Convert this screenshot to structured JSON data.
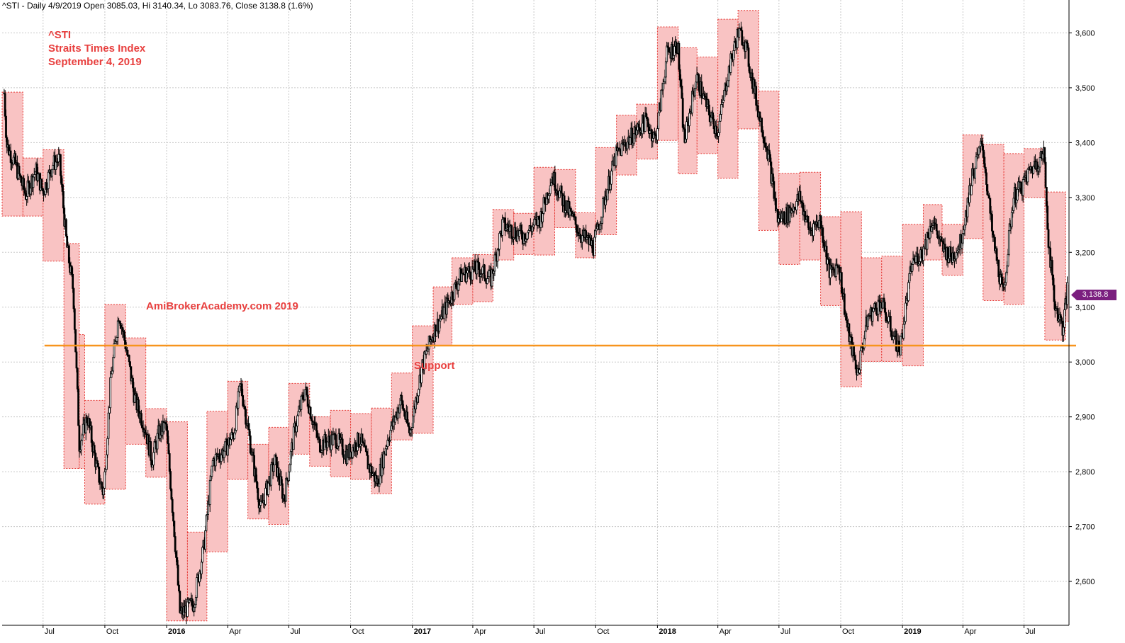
{
  "header": {
    "text": "^STI - Daily 4/9/2019 Open 3085.03, Hi 3140.34, Lo 3083.76, Close 3138.8 (1.6%)"
  },
  "annotations": {
    "symbol": "^STI",
    "name": "Straits Times Index",
    "date": "September 4, 2019",
    "watermark": "AmiBrokerAcademy.com   2019",
    "support_label": "Support"
  },
  "last_price_badge": "3,138.8",
  "colors": {
    "box_fill": "#f9c3c3",
    "box_border": "#e53935",
    "support_line": "#f7941d",
    "candle": "#000000",
    "grid": "#c8c8c8",
    "badge": "#7b1f7f",
    "annotation_text": "#e8403f"
  },
  "chart_data": {
    "type": "candlestick",
    "title": "^STI Straits Times Index",
    "subtitle": "September 4, 2019",
    "xlabel": "",
    "ylabel": "",
    "ylim": [
      2520,
      3660
    ],
    "x_range": [
      "2015-05-01",
      "2019-09-06"
    ],
    "yticks": [
      2600,
      2700,
      2800,
      2900,
      3000,
      3100,
      3200,
      3300,
      3400,
      3500,
      3600
    ],
    "ytick_labels": [
      "2,600",
      "2,700",
      "2,800",
      "2,900",
      "3,000",
      "3,100",
      "3,200",
      "3,300",
      "3,400",
      "3,500",
      "3,600"
    ],
    "xticks": [
      {
        "label": "Jul",
        "date": "2015-07-01",
        "year": false
      },
      {
        "label": "Oct",
        "date": "2015-10-01",
        "year": false
      },
      {
        "label": "2016",
        "date": "2016-01-01",
        "year": true
      },
      {
        "label": "Apr",
        "date": "2016-04-01",
        "year": false
      },
      {
        "label": "Jul",
        "date": "2016-07-01",
        "year": false
      },
      {
        "label": "Oct",
        "date": "2016-10-01",
        "year": false
      },
      {
        "label": "2017",
        "date": "2017-01-01",
        "year": true
      },
      {
        "label": "Apr",
        "date": "2017-04-01",
        "year": false
      },
      {
        "label": "Jul",
        "date": "2017-07-01",
        "year": false
      },
      {
        "label": "Oct",
        "date": "2017-10-01",
        "year": false
      },
      {
        "label": "2018",
        "date": "2018-01-01",
        "year": true
      },
      {
        "label": "Apr",
        "date": "2018-04-01",
        "year": false
      },
      {
        "label": "Jul",
        "date": "2018-07-01",
        "year": false
      },
      {
        "label": "Oct",
        "date": "2018-10-01",
        "year": false
      },
      {
        "label": "2019",
        "date": "2019-01-01",
        "year": true
      },
      {
        "label": "Apr",
        "date": "2019-04-01",
        "year": false
      },
      {
        "label": "Jul",
        "date": "2019-07-01",
        "year": false
      }
    ],
    "grid": true,
    "support_level": 3030,
    "last_close": 3138.8,
    "monthly_ranges": [
      {
        "start": "2015-05-01",
        "end": "2015-06-01",
        "high": 3492,
        "low": 3266
      },
      {
        "start": "2015-06-01",
        "end": "2015-07-01",
        "high": 3372,
        "low": 3266
      },
      {
        "start": "2015-07-01",
        "end": "2015-08-01",
        "high": 3387,
        "low": 3184
      },
      {
        "start": "2015-08-01",
        "end": "2015-08-24",
        "high": 3216,
        "low": 2806
      },
      {
        "start": "2015-08-24",
        "end": "2015-09-01",
        "high": 3050,
        "low": 2806
      },
      {
        "start": "2015-09-01",
        "end": "2015-10-01",
        "high": 2930,
        "low": 2741
      },
      {
        "start": "2015-10-01",
        "end": "2015-11-01",
        "high": 3105,
        "low": 2768
      },
      {
        "start": "2015-11-01",
        "end": "2015-12-01",
        "high": 3044,
        "low": 2850
      },
      {
        "start": "2015-12-01",
        "end": "2016-01-01",
        "high": 2915,
        "low": 2790
      },
      {
        "start": "2016-01-01",
        "end": "2016-02-01",
        "high": 2891,
        "low": 2528
      },
      {
        "start": "2016-02-01",
        "end": "2016-03-01",
        "high": 2690,
        "low": 2528
      },
      {
        "start": "2016-03-01",
        "end": "2016-04-01",
        "high": 2910,
        "low": 2654
      },
      {
        "start": "2016-04-01",
        "end": "2016-05-01",
        "high": 2965,
        "low": 2786
      },
      {
        "start": "2016-05-01",
        "end": "2016-06-01",
        "high": 2850,
        "low": 2714
      },
      {
        "start": "2016-06-01",
        "end": "2016-07-01",
        "high": 2881,
        "low": 2704
      },
      {
        "start": "2016-07-01",
        "end": "2016-08-01",
        "high": 2961,
        "low": 2832
      },
      {
        "start": "2016-08-01",
        "end": "2016-09-01",
        "high": 2900,
        "low": 2810
      },
      {
        "start": "2016-09-01",
        "end": "2016-10-01",
        "high": 2912,
        "low": 2791
      },
      {
        "start": "2016-10-01",
        "end": "2016-11-01",
        "high": 2906,
        "low": 2786
      },
      {
        "start": "2016-11-01",
        "end": "2016-12-01",
        "high": 2916,
        "low": 2760
      },
      {
        "start": "2016-12-01",
        "end": "2017-01-01",
        "high": 2980,
        "low": 2858
      },
      {
        "start": "2017-01-01",
        "end": "2017-02-01",
        "high": 3066,
        "low": 2870
      },
      {
        "start": "2017-02-01",
        "end": "2017-03-01",
        "high": 3137,
        "low": 3030
      },
      {
        "start": "2017-03-01",
        "end": "2017-04-01",
        "high": 3190,
        "low": 3105
      },
      {
        "start": "2017-04-01",
        "end": "2017-05-01",
        "high": 3196,
        "low": 3110
      },
      {
        "start": "2017-05-01",
        "end": "2017-06-01",
        "high": 3278,
        "low": 3186
      },
      {
        "start": "2017-06-01",
        "end": "2017-07-01",
        "high": 3271,
        "low": 3196
      },
      {
        "start": "2017-07-01",
        "end": "2017-08-01",
        "high": 3355,
        "low": 3195
      },
      {
        "start": "2017-08-01",
        "end": "2017-09-01",
        "high": 3351,
        "low": 3245
      },
      {
        "start": "2017-09-01",
        "end": "2017-10-01",
        "high": 3272,
        "low": 3190
      },
      {
        "start": "2017-10-01",
        "end": "2017-11-01",
        "high": 3391,
        "low": 3232
      },
      {
        "start": "2017-11-01",
        "end": "2017-12-01",
        "high": 3450,
        "low": 3341
      },
      {
        "start": "2017-12-01",
        "end": "2018-01-01",
        "high": 3470,
        "low": 3370
      },
      {
        "start": "2018-01-01",
        "end": "2018-02-01",
        "high": 3611,
        "low": 3404
      },
      {
        "start": "2018-02-01",
        "end": "2018-03-01",
        "high": 3573,
        "low": 3343
      },
      {
        "start": "2018-03-01",
        "end": "2018-04-01",
        "high": 3556,
        "low": 3380
      },
      {
        "start": "2018-04-01",
        "end": "2018-05-01",
        "high": 3625,
        "low": 3335
      },
      {
        "start": "2018-05-01",
        "end": "2018-06-01",
        "high": 3641,
        "low": 3425
      },
      {
        "start": "2018-06-01",
        "end": "2018-07-01",
        "high": 3494,
        "low": 3240
      },
      {
        "start": "2018-07-01",
        "end": "2018-08-01",
        "high": 3344,
        "low": 3178
      },
      {
        "start": "2018-08-01",
        "end": "2018-09-01",
        "high": 3346,
        "low": 3186
      },
      {
        "start": "2018-09-01",
        "end": "2018-10-01",
        "high": 3265,
        "low": 3103
      },
      {
        "start": "2018-10-01",
        "end": "2018-11-01",
        "high": 3274,
        "low": 2955
      },
      {
        "start": "2018-11-01",
        "end": "2018-12-01",
        "high": 3190,
        "low": 3001
      },
      {
        "start": "2018-12-01",
        "end": "2019-01-01",
        "high": 3193,
        "low": 3001
      },
      {
        "start": "2019-01-01",
        "end": "2019-02-01",
        "high": 3251,
        "low": 2993
      },
      {
        "start": "2019-02-01",
        "end": "2019-03-01",
        "high": 3287,
        "low": 3186
      },
      {
        "start": "2019-03-01",
        "end": "2019-04-01",
        "high": 3251,
        "low": 3158
      },
      {
        "start": "2019-04-01",
        "end": "2019-05-01",
        "high": 3414,
        "low": 3225
      },
      {
        "start": "2019-05-01",
        "end": "2019-06-01",
        "high": 3397,
        "low": 3112
      },
      {
        "start": "2019-06-01",
        "end": "2019-07-01",
        "high": 3380,
        "low": 3105
      },
      {
        "start": "2019-07-01",
        "end": "2019-08-01",
        "high": 3389,
        "low": 3300
      },
      {
        "start": "2019-08-01",
        "end": "2019-09-01",
        "high": 3310,
        "low": 3040
      },
      {
        "start": "2019-09-01",
        "end": "2019-09-06",
        "high": 3140,
        "low": 3074
      }
    ],
    "close_path": [
      [
        "2015-05-04",
        3490
      ],
      [
        "2015-05-08",
        3395
      ],
      [
        "2015-05-20",
        3362
      ],
      [
        "2015-06-05",
        3305
      ],
      [
        "2015-06-20",
        3350
      ],
      [
        "2015-07-01",
        3310
      ],
      [
        "2015-07-15",
        3360
      ],
      [
        "2015-07-25",
        3370
      ],
      [
        "2015-08-05",
        3215
      ],
      [
        "2015-08-15",
        3130
      ],
      [
        "2015-08-24",
        2850
      ],
      [
        "2015-09-05",
        2900
      ],
      [
        "2015-09-20",
        2800
      ],
      [
        "2015-09-29",
        2760
      ],
      [
        "2015-10-10",
        2970
      ],
      [
        "2015-10-22",
        3090
      ],
      [
        "2015-11-01",
        3030
      ],
      [
        "2015-11-15",
        2930
      ],
      [
        "2015-11-30",
        2880
      ],
      [
        "2015-12-10",
        2820
      ],
      [
        "2015-12-20",
        2870
      ],
      [
        "2015-12-31",
        2885
      ],
      [
        "2016-01-12",
        2700
      ],
      [
        "2016-01-21",
        2540
      ],
      [
        "2016-02-10",
        2560
      ],
      [
        "2016-02-25",
        2660
      ],
      [
        "2016-03-10",
        2820
      ],
      [
        "2016-03-28",
        2840
      ],
      [
        "2016-04-10",
        2870
      ],
      [
        "2016-04-20",
        2960
      ],
      [
        "2016-05-01",
        2880
      ],
      [
        "2016-05-20",
        2730
      ],
      [
        "2016-06-10",
        2820
      ],
      [
        "2016-06-24",
        2750
      ],
      [
        "2016-07-10",
        2880
      ],
      [
        "2016-07-25",
        2950
      ],
      [
        "2016-08-15",
        2850
      ],
      [
        "2016-09-10",
        2860
      ],
      [
        "2016-09-25",
        2830
      ],
      [
        "2016-10-15",
        2860
      ],
      [
        "2016-10-28",
        2810
      ],
      [
        "2016-11-10",
        2780
      ],
      [
        "2016-11-25",
        2860
      ],
      [
        "2016-12-15",
        2930
      ],
      [
        "2016-12-28",
        2870
      ],
      [
        "2017-01-15",
        2990
      ],
      [
        "2017-01-31",
        3050
      ],
      [
        "2017-02-20",
        3100
      ],
      [
        "2017-03-15",
        3160
      ],
      [
        "2017-04-10",
        3170
      ],
      [
        "2017-04-28",
        3150
      ],
      [
        "2017-05-15",
        3250
      ],
      [
        "2017-06-15",
        3230
      ],
      [
        "2017-07-10",
        3260
      ],
      [
        "2017-07-28",
        3340
      ],
      [
        "2017-08-15",
        3290
      ],
      [
        "2017-09-10",
        3230
      ],
      [
        "2017-09-28",
        3210
      ],
      [
        "2017-10-15",
        3300
      ],
      [
        "2017-10-31",
        3375
      ],
      [
        "2017-11-15",
        3400
      ],
      [
        "2017-12-15",
        3440
      ],
      [
        "2017-12-29",
        3405
      ],
      [
        "2018-01-15",
        3560
      ],
      [
        "2018-01-31",
        3580
      ],
      [
        "2018-02-10",
        3400
      ],
      [
        "2018-02-28",
        3520
      ],
      [
        "2018-03-20",
        3450
      ],
      [
        "2018-04-01",
        3420
      ],
      [
        "2018-04-15",
        3520
      ],
      [
        "2018-05-01",
        3600
      ],
      [
        "2018-05-10",
        3590
      ],
      [
        "2018-05-31",
        3460
      ],
      [
        "2018-06-15",
        3380
      ],
      [
        "2018-06-29",
        3260
      ],
      [
        "2018-07-15",
        3270
      ],
      [
        "2018-08-01",
        3300
      ],
      [
        "2018-08-15",
        3240
      ],
      [
        "2018-08-31",
        3260
      ],
      [
        "2018-09-15",
        3160
      ],
      [
        "2018-09-28",
        3180
      ],
      [
        "2018-10-11",
        3060
      ],
      [
        "2018-10-26",
        2980
      ],
      [
        "2018-11-10",
        3080
      ],
      [
        "2018-11-30",
        3110
      ],
      [
        "2018-12-15",
        3060
      ],
      [
        "2018-12-28",
        3020
      ],
      [
        "2019-01-15",
        3180
      ],
      [
        "2019-01-31",
        3200
      ],
      [
        "2019-02-15",
        3260
      ],
      [
        "2019-02-28",
        3210
      ],
      [
        "2019-03-15",
        3190
      ],
      [
        "2019-03-29",
        3220
      ],
      [
        "2019-04-15",
        3340
      ],
      [
        "2019-04-30",
        3400
      ],
      [
        "2019-05-15",
        3230
      ],
      [
        "2019-05-31",
        3120
      ],
      [
        "2019-06-15",
        3300
      ],
      [
        "2019-06-28",
        3320
      ],
      [
        "2019-07-10",
        3350
      ],
      [
        "2019-07-31",
        3380
      ],
      [
        "2019-08-06",
        3230
      ],
      [
        "2019-08-15",
        3110
      ],
      [
        "2019-08-28",
        3060
      ],
      [
        "2019-09-04",
        3138
      ]
    ]
  }
}
